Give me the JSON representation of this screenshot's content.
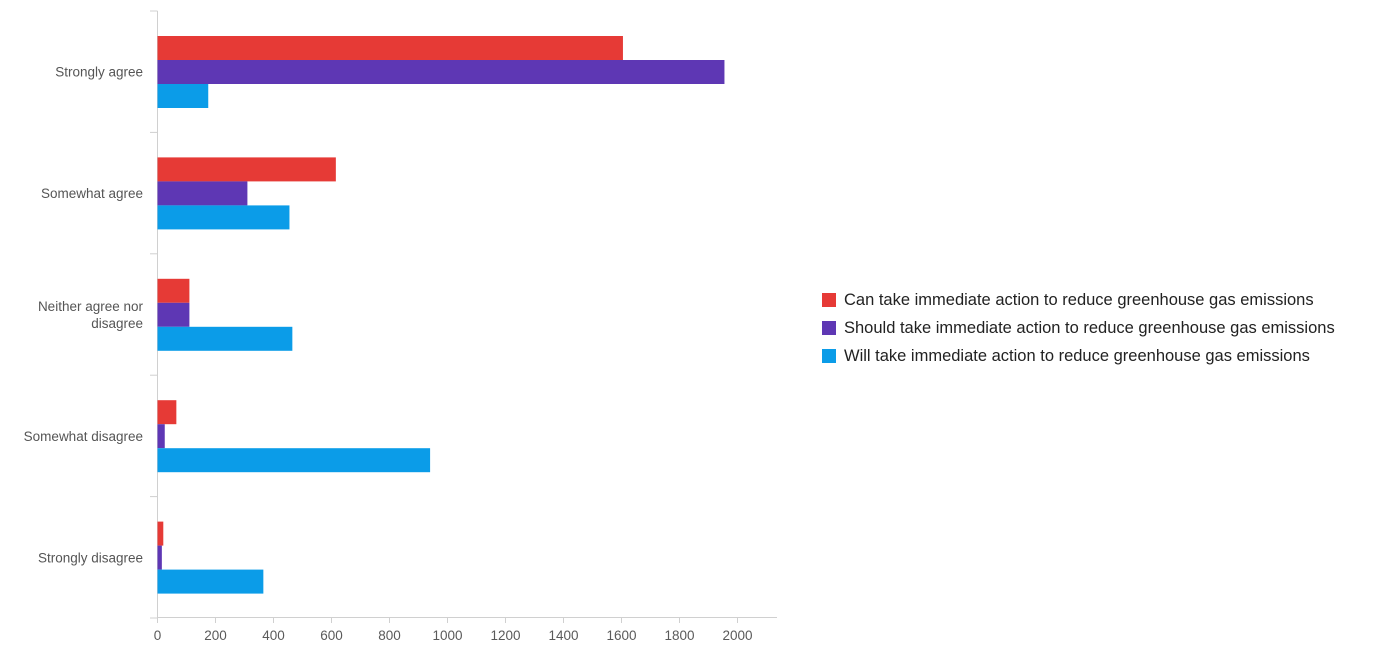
{
  "chart_data": {
    "type": "bar",
    "orientation": "horizontal",
    "categories": [
      "Strongly agree",
      "Somewhat agree",
      "Neither agree nor disagree",
      "Somewhat disagree",
      "Strongly disagree"
    ],
    "category_lines": [
      [
        "Strongly agree"
      ],
      [
        "Somewhat agree"
      ],
      [
        "Neither agree nor",
        "disagree"
      ],
      [
        "Somewhat disagree"
      ],
      [
        "Strongly disagree"
      ]
    ],
    "series": [
      {
        "name": "Can take immediate action to reduce greenhouse gas emissions",
        "color": "#e63a36",
        "values": [
          1605,
          615,
          110,
          65,
          20
        ]
      },
      {
        "name": "Should take immediate action to reduce greenhouse gas emissions",
        "color": "#5e37b4",
        "values": [
          1955,
          310,
          110,
          25,
          15
        ]
      },
      {
        "name": "Will take immediate action to reduce greenhouse gas emissions",
        "color": "#0b9ce8",
        "values": [
          175,
          455,
          465,
          940,
          365
        ]
      }
    ],
    "x_ticks": [
      0,
      200,
      400,
      600,
      800,
      1000,
      1200,
      1400,
      1600,
      1800,
      2000
    ],
    "xlim": [
      0,
      2150
    ],
    "title": "",
    "xlabel": "",
    "ylabel": "",
    "grid": false,
    "legend_position": "right"
  }
}
